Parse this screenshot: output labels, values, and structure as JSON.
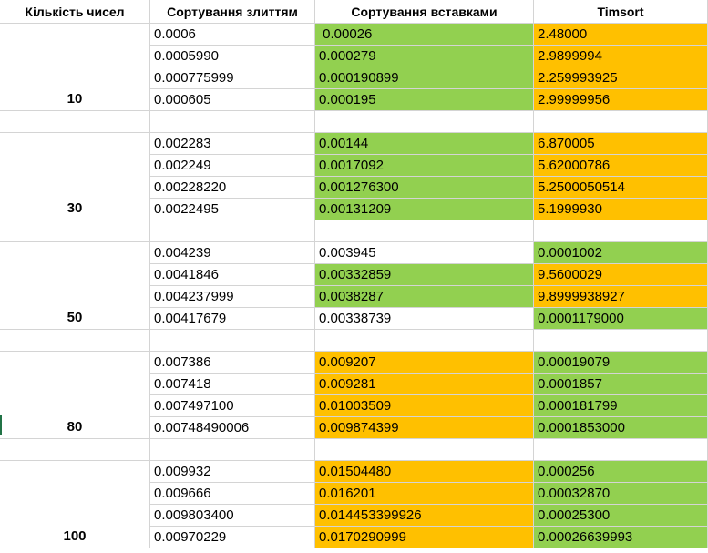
{
  "colors": {
    "green": "#92d050",
    "orange": "#ffc000",
    "white": "#ffffff",
    "grid": "#d4d4d4"
  },
  "headers": [
    "Кількість чисел",
    "Сортування злиттям",
    "Сортування вставками",
    "Timsort"
  ],
  "groups": [
    {
      "count": "10",
      "rows": [
        {
          "merge": "0.0006",
          "insert": " 0.00026",
          "ic": "green",
          "tim": "2.48000",
          "tc": "orange"
        },
        {
          "merge": "0.0005990",
          "insert": "0.000279",
          "ic": "green",
          "tim": "2.9899994",
          "tc": "orange"
        },
        {
          "merge": "0.000775999",
          "insert": "0.000190899",
          "ic": "green",
          "tim": "2.259993925",
          "tc": "orange"
        },
        {
          "merge": "0.000605",
          "insert": "0.000195",
          "ic": "green",
          "tim": "2.99999956",
          "tc": "orange"
        }
      ]
    },
    {
      "count": "30",
      "rows": [
        {
          "merge": "0.002283",
          "insert": "0.00144",
          "ic": "green",
          "tim": "6.870005",
          "tc": "orange"
        },
        {
          "merge": "0.002249",
          "insert": "0.0017092",
          "ic": "green",
          "tim": "5.62000786",
          "tc": "orange"
        },
        {
          "merge": "0.00228220",
          "insert": "0.001276300",
          "ic": "green",
          "tim": "5.2500050514",
          "tc": "orange"
        },
        {
          "merge": "0.0022495",
          "insert": "0.00131209",
          "ic": "green",
          "tim": "5.1999930",
          "tc": "orange"
        }
      ]
    },
    {
      "count": "50",
      "rows": [
        {
          "merge": "0.004239",
          "insert": "0.003945",
          "ic": "white",
          "tim": "0.0001002",
          "tc": "green"
        },
        {
          "merge": "0.0041846",
          "insert": "0.00332859",
          "ic": "green",
          "tim": "9.5600029",
          "tc": "orange"
        },
        {
          "merge": "0.004237999",
          "insert": "0.0038287",
          "ic": "green",
          "tim": "9.8999938927",
          "tc": "orange"
        },
        {
          "merge": "0.00417679",
          "insert": "0.00338739",
          "ic": "white",
          "tim": "0.0001179000",
          "tc": "green"
        }
      ]
    },
    {
      "count": "80",
      "rows": [
        {
          "merge": "0.007386",
          "insert": "0.009207",
          "ic": "orange",
          "tim": "0.00019079",
          "tc": "green"
        },
        {
          "merge": "0.007418",
          "insert": "0.009281",
          "ic": "orange",
          "tim": "0.0001857",
          "tc": "green"
        },
        {
          "merge": "0.007497100",
          "insert": "0.01003509",
          "ic": "orange",
          "tim": "0.000181799",
          "tc": "green"
        },
        {
          "merge": "0.00748490006",
          "insert": "0.009874399",
          "ic": "orange",
          "tim": "0.0001853000",
          "tc": "green"
        }
      ]
    },
    {
      "count": "100",
      "rows": [
        {
          "merge": "0.009932",
          "insert": "0.01504480",
          "ic": "orange",
          "tim": "0.000256",
          "tc": "green"
        },
        {
          "merge": "0.009666",
          "insert": "0.016201",
          "ic": "orange",
          "tim": "0.00032870",
          "tc": "green"
        },
        {
          "merge": "0.009803400",
          "insert": "0.014453399926",
          "ic": "orange",
          "tim": "0.00025300",
          "tc": "green"
        },
        {
          "merge": "0.00970229",
          "insert": "0.0170290999",
          "ic": "orange",
          "tim": "0.00026639993",
          "tc": "green"
        }
      ]
    }
  ]
}
